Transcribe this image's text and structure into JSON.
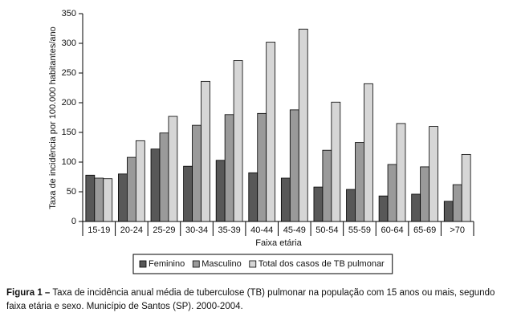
{
  "chart_data": {
    "type": "bar",
    "y_label": "Taxa de incidência por 100.000 habitantes/ano",
    "x_label": "Faixa etária",
    "categories": [
      "15-19",
      "20-24",
      "25-29",
      "30-34",
      "35-39",
      "40-44",
      "45-49",
      "50-54",
      "55-59",
      "60-64",
      "65-69",
      ">70"
    ],
    "series": [
      {
        "name": "Feminino",
        "color": "#585858",
        "values": [
          78,
          80,
          122,
          93,
          103,
          82,
          73,
          58,
          54,
          43,
          46,
          34
        ]
      },
      {
        "name": "Masculino",
        "color": "#9a9a9a",
        "values": [
          73,
          108,
          149,
          162,
          180,
          182,
          188,
          120,
          133,
          96,
          92,
          62
        ]
      },
      {
        "name": "Total dos casos de TB pulmonar",
        "color": "#d6d6d6",
        "values": [
          72,
          136,
          177,
          236,
          271,
          302,
          324,
          201,
          232,
          165,
          160,
          113
        ]
      }
    ],
    "ylim": [
      0,
      350
    ],
    "yticks": [
      0,
      50,
      100,
      150,
      200,
      250,
      300,
      350
    ],
    "grid": false,
    "legend": "bottom"
  },
  "caption": {
    "label": "Figura 1 –",
    "text": "Taxa de incidência anual média de tuberculose (TB) pulmonar na população com 15 anos ou mais, segundo faixa etária e sexo. Município de Santos (SP). 2000-2004."
  }
}
